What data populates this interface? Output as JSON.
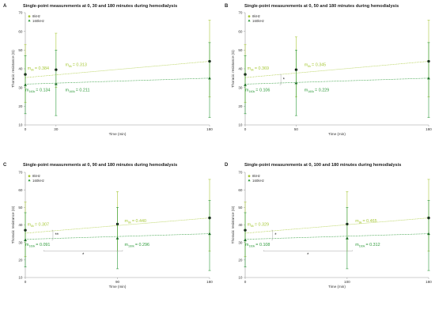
{
  "colors": {
    "light": "#a8c93a",
    "dark": "#2e9a3a",
    "axis": "#9a9a9a",
    "bracket": "#aaaaaa"
  },
  "chart_data": [
    {
      "type": "scatter",
      "panel": "A",
      "title": "Single-point measurements at 0, 30 and 180 minutes during hemodialysis",
      "xlabel": "Time (min)",
      "ylabel": "Thoracic resistance (Ω)",
      "xlim": [
        0,
        180
      ],
      "ylim": [
        10,
        70
      ],
      "xticks": [
        "0",
        "30",
        "180"
      ],
      "yticks": [
        10,
        20,
        30,
        40,
        50,
        60,
        70
      ],
      "legend": [
        "8kHz",
        "160kHz"
      ],
      "series": [
        {
          "name": "8kHz",
          "x": [
            0,
            30,
            180
          ],
          "y": [
            37,
            39.5,
            44
          ],
          "err_lo": [
            22,
            30,
            25
          ],
          "err_hi": [
            53,
            59,
            66
          ],
          "trend": [
            35.3,
            44.0
          ]
        },
        {
          "name": "160kHz",
          "x": [
            0,
            30,
            180
          ],
          "y": [
            31.5,
            32,
            35
          ],
          "err_lo": [
            16,
            15,
            14
          ],
          "err_hi": [
            47,
            50,
            54
          ],
          "trend": [
            31.8,
            35.0
          ]
        }
      ],
      "annotations": [
        {
          "sub": "8k",
          "value": "= 0.384",
          "color": "light",
          "xd": 2,
          "yd": 39.5
        },
        {
          "sub": "8k",
          "value": "= 0.313",
          "color": "light",
          "xd": 39,
          "yd": 41.5
        },
        {
          "sub": "160k",
          "value": "= 0.134",
          "color": "dark",
          "xd": 0,
          "yd": 28
        },
        {
          "sub": "160k",
          "value": "= 0.211",
          "color": "dark",
          "xd": 39,
          "yd": 28
        }
      ],
      "sig": []
    },
    {
      "type": "scatter",
      "panel": "B",
      "title": "Single-point measurements at 0, 50 and 180 minutes during hemodialysis",
      "xlabel": "Time (min)",
      "ylabel": "Thoracic resistance (Ω)",
      "xlim": [
        0,
        180
      ],
      "ylim": [
        10,
        70
      ],
      "xticks": [
        "0",
        "50",
        "180"
      ],
      "yticks": [
        10,
        20,
        30,
        40,
        50,
        60,
        70
      ],
      "legend": [
        "8kHz",
        "160kHz"
      ],
      "series": [
        {
          "name": "8kHz",
          "x": [
            0,
            50,
            180
          ],
          "y": [
            37,
            39.5,
            44
          ],
          "err_lo": [
            22,
            25,
            25
          ],
          "err_hi": [
            53,
            57,
            66
          ],
          "trend": [
            35.3,
            44.0
          ]
        },
        {
          "name": "160kHz",
          "x": [
            0,
            50,
            180
          ],
          "y": [
            31.5,
            32.5,
            35
          ],
          "err_lo": [
            16,
            15,
            14
          ],
          "err_hi": [
            47,
            50,
            54
          ],
          "trend": [
            31.8,
            35.0
          ]
        }
      ],
      "annotations": [
        {
          "sub": "8k",
          "value": "= 0.369",
          "color": "light",
          "xd": 2,
          "yd": 39.5
        },
        {
          "sub": "8k",
          "value": "= 0.345",
          "color": "light",
          "xd": 58,
          "yd": 41.5
        },
        {
          "sub": "160k",
          "value": "= 0.106",
          "color": "dark",
          "xd": 0,
          "yd": 28
        },
        {
          "sub": "160k",
          "value": "= 0.229",
          "color": "dark",
          "xd": 58,
          "yd": 28
        }
      ],
      "sig": [
        {
          "label": "*",
          "type": "vbracket",
          "xd": 35,
          "y1": 31.5,
          "y2": 37
        }
      ]
    },
    {
      "type": "scatter",
      "panel": "C",
      "title": "Single-point measurements at 0, 90 and 180 minutes during hemodialysis",
      "xlabel": "Time (min)",
      "ylabel": "Thoracic resistance (Ω)",
      "xlim": [
        0,
        180
      ],
      "ylim": [
        10,
        70
      ],
      "xticks": [
        "0",
        "90",
        "180"
      ],
      "yticks": [
        10,
        20,
        30,
        40,
        50,
        60,
        70
      ],
      "legend": [
        "8kHz",
        "160kHz"
      ],
      "series": [
        {
          "name": "8kHz",
          "x": [
            0,
            90,
            180
          ],
          "y": [
            37,
            40.5,
            44
          ],
          "err_lo": [
            22,
            25,
            25
          ],
          "err_hi": [
            53,
            59,
            66
          ],
          "trend": [
            35.3,
            44.0
          ]
        },
        {
          "name": "160kHz",
          "x": [
            0,
            90,
            180
          ],
          "y": [
            31.5,
            32.5,
            35
          ],
          "err_lo": [
            16,
            15,
            14
          ],
          "err_hi": [
            47,
            50,
            54
          ],
          "trend": [
            31.8,
            35.0
          ]
        }
      ],
      "annotations": [
        {
          "sub": "8k",
          "value": "= 0.307",
          "color": "light",
          "xd": 2,
          "yd": 39.5
        },
        {
          "sub": "8k",
          "value": "= 0.440",
          "color": "light",
          "xd": 97,
          "yd": 41.5
        },
        {
          "sub": "160k",
          "value": "= 0.091",
          "color": "dark",
          "xd": 0,
          "yd": 28
        },
        {
          "sub": "160k",
          "value": "= 0.296",
          "color": "dark",
          "xd": 97,
          "yd": 28
        }
      ],
      "sig": [
        {
          "label": "**",
          "type": "vbracket",
          "xd": 27,
          "y1": 31.5,
          "y2": 37
        },
        {
          "label": "*",
          "type": "hbracket",
          "x1": 18,
          "x2": 95,
          "yd": 25
        }
      ]
    },
    {
      "type": "scatter",
      "panel": "D",
      "title": "Single-point measurements at 0, 100 and 180 minutes during hemodialysis",
      "xlabel": "Time (min)",
      "ylabel": "Thoracic resistance (Ω)",
      "xlim": [
        0,
        180
      ],
      "ylim": [
        10,
        70
      ],
      "xticks": [
        "0",
        "100",
        "180"
      ],
      "yticks": [
        10,
        20,
        30,
        40,
        50,
        60,
        70
      ],
      "legend": [
        "8kHz",
        "160kHz"
      ],
      "series": [
        {
          "name": "8kHz",
          "x": [
            0,
            100,
            180
          ],
          "y": [
            37,
            40.5,
            44
          ],
          "err_lo": [
            22,
            25,
            25
          ],
          "err_hi": [
            53,
            59,
            66
          ],
          "trend": [
            35.3,
            44.0
          ]
        },
        {
          "name": "160kHz",
          "x": [
            0,
            100,
            180
          ],
          "y": [
            31.5,
            32.5,
            35
          ],
          "err_lo": [
            16,
            15,
            14
          ],
          "err_hi": [
            47,
            50,
            54
          ],
          "trend": [
            31.8,
            35.0
          ]
        }
      ],
      "annotations": [
        {
          "sub": "8k",
          "value": "= 0.329",
          "color": "light",
          "xd": 2,
          "yd": 39.5
        },
        {
          "sub": "8k",
          "value": "= 0.465",
          "color": "light",
          "xd": 108,
          "yd": 41.5
        },
        {
          "sub": "160k",
          "value": "= 0.108",
          "color": "dark",
          "xd": 0,
          "yd": 28
        },
        {
          "sub": "160k",
          "value": "= 0.312",
          "color": "dark",
          "xd": 108,
          "yd": 28
        }
      ],
      "sig": [
        {
          "label": "*",
          "type": "vbracket",
          "xd": 27,
          "y1": 31.5,
          "y2": 37
        },
        {
          "label": "*",
          "type": "hbracket",
          "x1": 18,
          "x2": 105,
          "yd": 25
        }
      ]
    }
  ]
}
